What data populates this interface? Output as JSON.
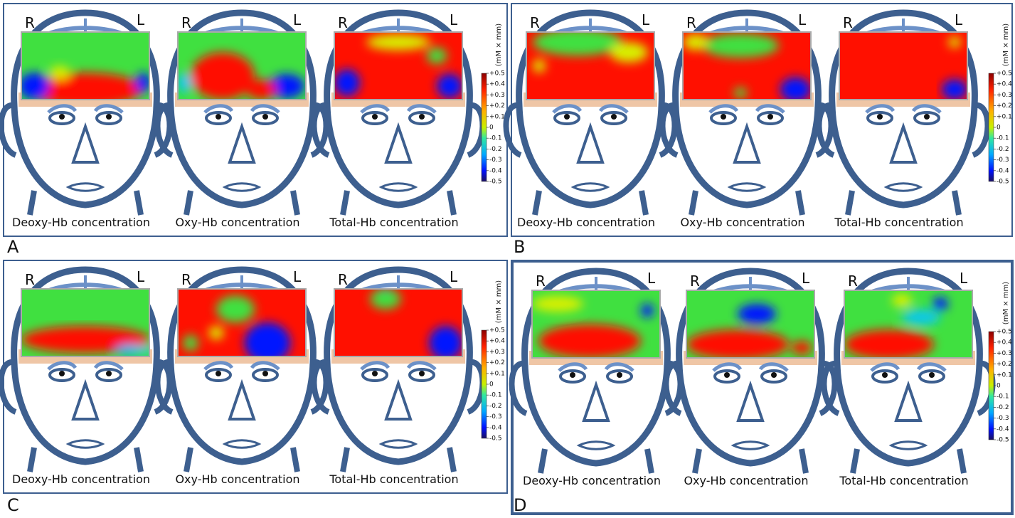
{
  "panels": [
    {
      "label": "A",
      "heads": [
        {
          "left_label": "R",
          "right_label": "L",
          "caption": "Deoxy-Hb concentration"
        },
        {
          "left_label": "R",
          "right_label": "L",
          "caption": "Oxy-Hb concentration"
        },
        {
          "left_label": "R",
          "right_label": "L",
          "caption": "Total-Hb concentration"
        }
      ],
      "colorbar": {
        "unit": "(mM × mm)",
        "ticks": [
          "+0.5",
          "+0.4",
          "+0.3",
          "+0.2",
          "+0.1",
          "0",
          "-0.1",
          "-0.2",
          "-0.3",
          "-0.4",
          "-0.5"
        ]
      }
    },
    {
      "label": "B",
      "heads": [
        {
          "left_label": "R",
          "right_label": "L",
          "caption": "Deoxy-Hb concentration"
        },
        {
          "left_label": "R",
          "right_label": "L",
          "caption": "Oxy-Hb concentration"
        },
        {
          "left_label": "R",
          "right_label": "L",
          "caption": "Total-Hb concentration"
        }
      ],
      "colorbar": {
        "unit": "(mM × mm)",
        "ticks": [
          "+0.5",
          "+0.4",
          "+0.3",
          "+0.2",
          "+0.1",
          "0",
          "-0.1",
          "-0.2",
          "-0.3",
          "-0.4",
          "-0.5"
        ]
      }
    },
    {
      "label": "C",
      "heads": [
        {
          "left_label": "R",
          "right_label": "L",
          "caption": "Deoxy-Hb concentration"
        },
        {
          "left_label": "R",
          "right_label": "L",
          "caption": "Oxy-Hb concentration"
        },
        {
          "left_label": "R",
          "right_label": "L",
          "caption": "Total-Hb concentration"
        }
      ],
      "colorbar": {
        "unit": "(mM × mm)",
        "ticks": [
          "+0.5",
          "+0.4",
          "+0.3",
          "+0.2",
          "+0.1",
          "0",
          "-0.1",
          "-0.2",
          "-0.3",
          "-0.4",
          "-0.5"
        ]
      }
    },
    {
      "label": "D",
      "heads": [
        {
          "left_label": "R",
          "right_label": "L",
          "caption": "Deoxy-Hb concentration"
        },
        {
          "left_label": "R",
          "right_label": "L",
          "caption": "Oxy-Hb concentration"
        },
        {
          "left_label": "R",
          "right_label": "L",
          "caption": "Total-Hb concentration"
        }
      ],
      "colorbar": {
        "unit": "(mM × mm)",
        "ticks": [
          "+0.5",
          "+0.4",
          "+0.3",
          "+0.2",
          "+0.1",
          "0",
          "-0.1",
          "-0.2",
          "-0.3",
          "-0.4",
          "-0.5"
        ]
      }
    }
  ]
}
